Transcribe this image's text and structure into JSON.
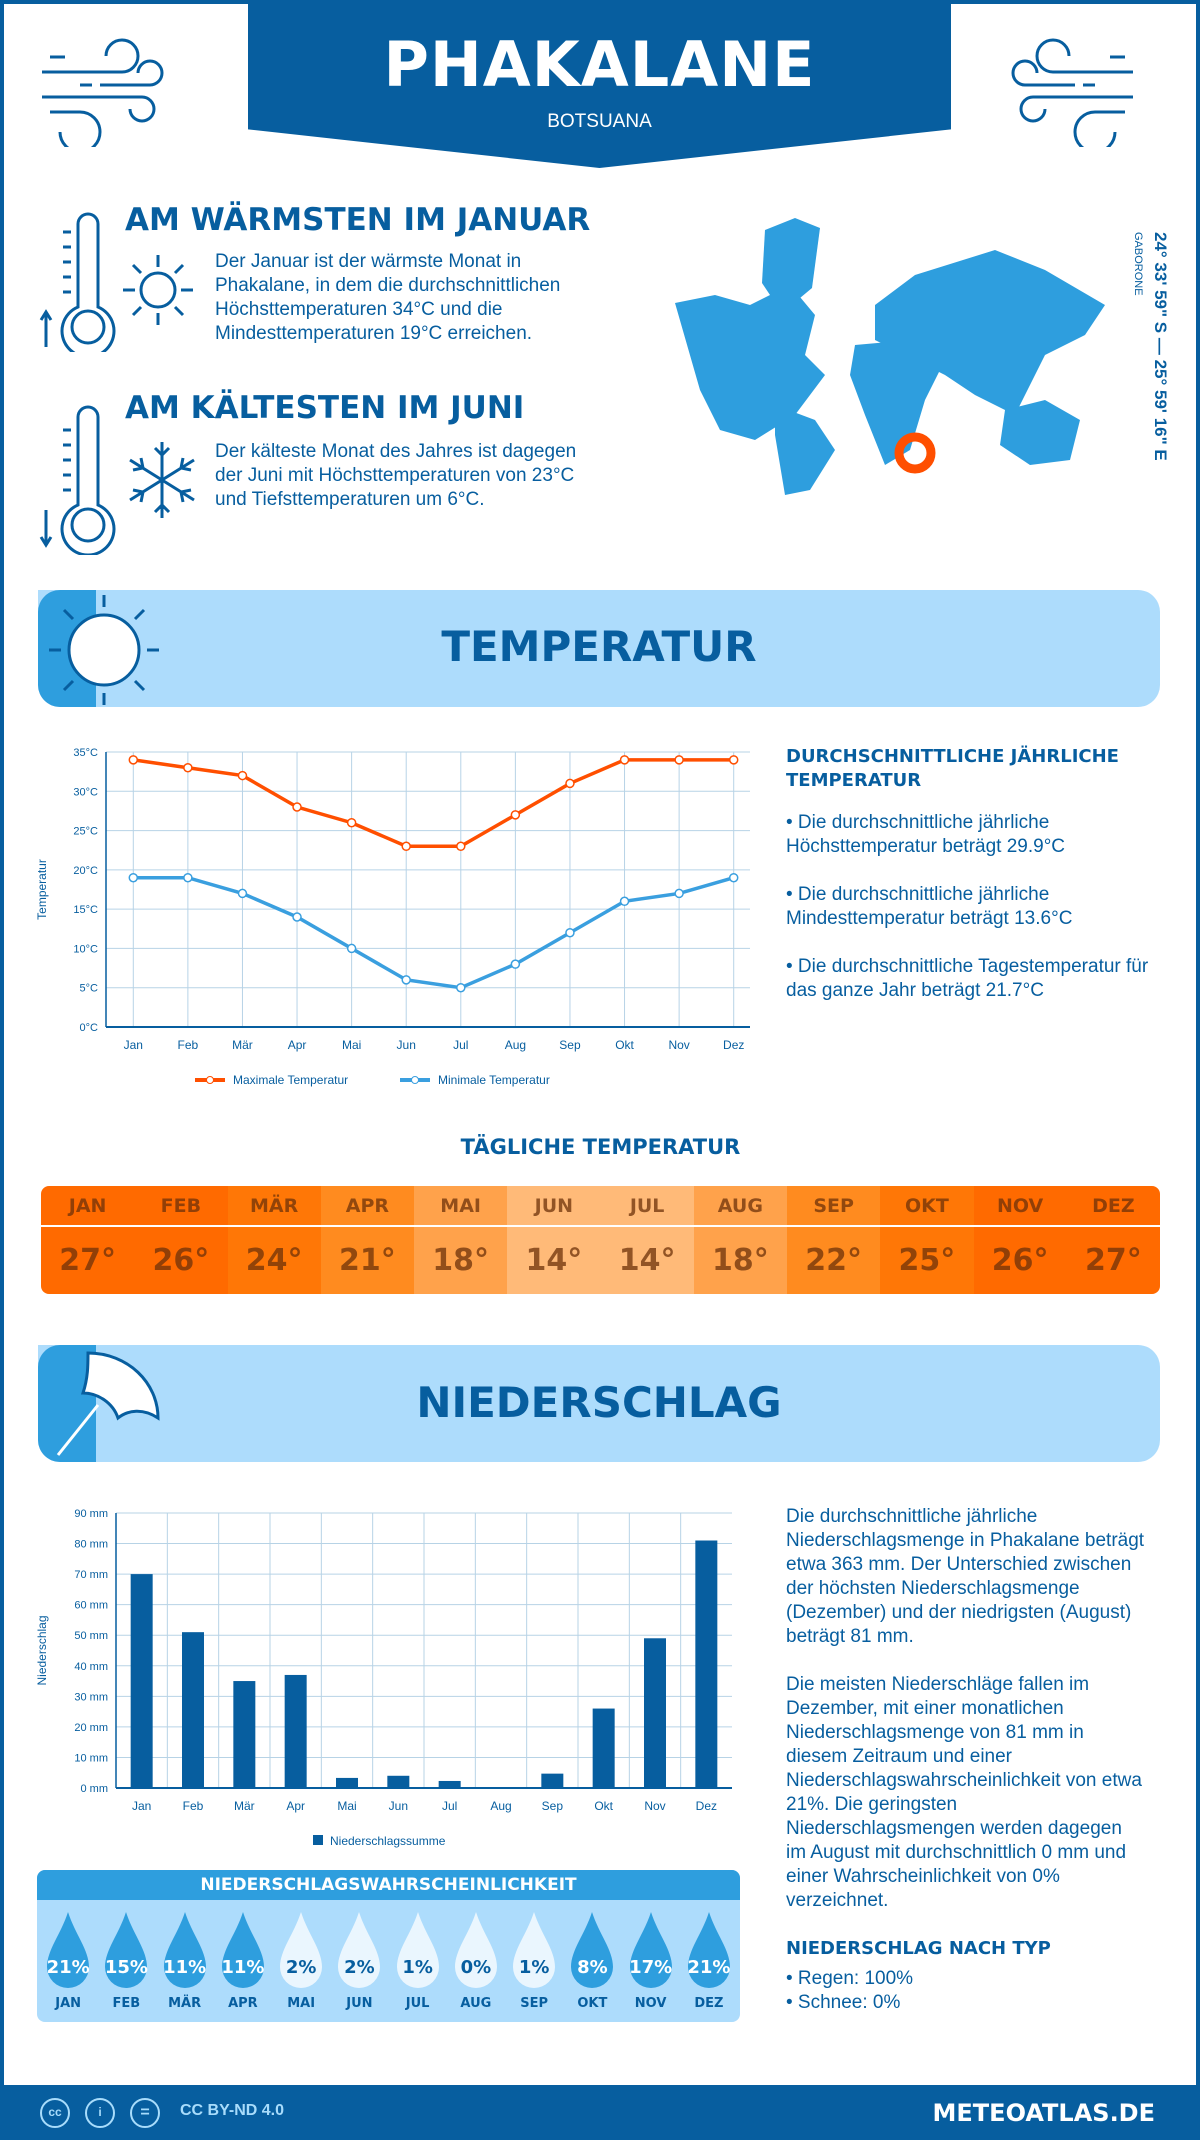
{
  "header": {
    "title": "PHAKALANE",
    "subtitle": "BOTSUANA"
  },
  "warmest": {
    "heading": "AM WÄRMSTEN IM JANUAR",
    "text": "Der Januar ist der wärmste Monat in Phakalane, in dem die durchschnittlichen Höchsttemperaturen 34°C und die Mindesttemperaturen 19°C erreichen."
  },
  "coldest": {
    "heading": "AM KÄLTESTEN IM JUNI",
    "text": "Der kälteste Monat des Jahres ist dagegen der Juni mit Höchsttemperaturen von 23°C und Tiefsttemperaturen um 6°C."
  },
  "map": {
    "coordinates": "24° 33' 59\" S — 25° 59' 16\" E",
    "nearest_city": "GABORONE",
    "marker_color": "#ff4f00"
  },
  "temperature_section": {
    "title": "TEMPERATUR",
    "annual_heading": "DURCHSCHNITTLICHE JÄHRLICHE TEMPERATUR",
    "bullets": [
      "• Die durchschnittliche jährliche Höchsttemperatur beträgt 29.9°C",
      "• Die durchschnittliche jährliche Mindesttemperatur beträgt 13.6°C",
      "• Die durchschnittliche Tagestemperatur für das ganze Jahr beträgt 21.7°C"
    ],
    "daily_heading": "TÄGLICHE TEMPERATUR",
    "daily": [
      {
        "month": "JAN",
        "value": "27°",
        "color": "#ff6a00"
      },
      {
        "month": "FEB",
        "value": "26°",
        "color": "#ff6a00"
      },
      {
        "month": "MÄR",
        "value": "24°",
        "color": "#ff7706"
      },
      {
        "month": "APR",
        "value": "21°",
        "color": "#ff8b1f"
      },
      {
        "month": "MAI",
        "value": "18°",
        "color": "#ffa24b"
      },
      {
        "month": "JUN",
        "value": "14°",
        "color": "#ffba78"
      },
      {
        "month": "JUL",
        "value": "14°",
        "color": "#ffba78"
      },
      {
        "month": "AUG",
        "value": "18°",
        "color": "#ffa24b"
      },
      {
        "month": "SEP",
        "value": "22°",
        "color": "#ff8b1f"
      },
      {
        "month": "OKT",
        "value": "25°",
        "color": "#ff7706"
      },
      {
        "month": "NOV",
        "value": "26°",
        "color": "#ff6a00"
      },
      {
        "month": "DEZ",
        "value": "27°",
        "color": "#ff6a00"
      }
    ]
  },
  "precipitation_section": {
    "title": "NIEDERSCHLAG",
    "text1": "Die durchschnittliche jährliche Niederschlagsmenge in Phakalane beträgt etwa 363 mm. Der Unterschied zwischen der höchsten Niederschlagsmenge (Dezember) und der niedrigsten (August) beträgt 81 mm.",
    "text2": "Die meisten Niederschläge fallen im Dezember, mit einer monatlichen Niederschlagsmenge von 81 mm in diesem Zeitraum und einer Niederschlagswahrscheinlichkeit von etwa 21%. Die geringsten Niederschlagsmengen werden dagegen im August mit durchschnittlich 0 mm und einer Wahrscheinlichkeit von 0% verzeichnet.",
    "type_heading": "NIEDERSCHLAG NACH TYP",
    "types": [
      "• Regen: 100%",
      "• Schnee: 0%"
    ],
    "probability_heading": "NIEDERSCHLAGSWAHRSCHEINLICHKEIT",
    "probability": [
      {
        "month": "JAN",
        "value": "21%"
      },
      {
        "month": "FEB",
        "value": "15%"
      },
      {
        "month": "MÄR",
        "value": "11%"
      },
      {
        "month": "APR",
        "value": "11%"
      },
      {
        "month": "MAI",
        "value": "2%"
      },
      {
        "month": "JUN",
        "value": "2%"
      },
      {
        "month": "JUL",
        "value": "1%"
      },
      {
        "month": "AUG",
        "value": "0%"
      },
      {
        "month": "SEP",
        "value": "1%"
      },
      {
        "month": "OKT",
        "value": "8%"
      },
      {
        "month": "NOV",
        "value": "17%"
      },
      {
        "month": "DEZ",
        "value": "21%"
      }
    ]
  },
  "footer": {
    "license": "CC BY-ND 4.0",
    "site": "METEOATLAS.DE"
  },
  "chart_data": [
    {
      "type": "line",
      "categories": [
        "Jan",
        "Feb",
        "Mär",
        "Apr",
        "Mai",
        "Jun",
        "Jul",
        "Aug",
        "Sep",
        "Okt",
        "Nov",
        "Dez"
      ],
      "ylabel": "Temperatur",
      "ylim": [
        0,
        35
      ],
      "yticks": [
        "0°C",
        "5°C",
        "10°C",
        "15°C",
        "20°C",
        "25°C",
        "30°C",
        "35°C"
      ],
      "grid": true,
      "legend": "bottom",
      "series": [
        {
          "name": "Maximale Temperatur",
          "color": "#ff4f00",
          "values": [
            34,
            33,
            32,
            28,
            26,
            23,
            23,
            27,
            31,
            34,
            34,
            34
          ]
        },
        {
          "name": "Minimale Temperatur",
          "color": "#3a9fdf",
          "values": [
            19,
            19,
            17,
            14,
            10,
            6,
            5,
            8,
            12,
            16,
            17,
            19
          ]
        }
      ]
    },
    {
      "type": "bar",
      "categories": [
        "Jan",
        "Feb",
        "Mär",
        "Apr",
        "Mai",
        "Jun",
        "Jul",
        "Aug",
        "Sep",
        "Okt",
        "Nov",
        "Dez"
      ],
      "ylabel": "Niederschlag",
      "ylim": [
        0,
        90
      ],
      "yticks": [
        "0 mm",
        "10 mm",
        "20 mm",
        "30 mm",
        "40 mm",
        "50 mm",
        "60 mm",
        "70 mm",
        "80 mm",
        "90 mm"
      ],
      "grid": true,
      "legend": "bottom",
      "series": [
        {
          "name": "Niederschlagssumme",
          "color": "#075e9f",
          "values": [
            70,
            51,
            35,
            37,
            3.3,
            4,
            2.3,
            0,
            4.7,
            26,
            49,
            81
          ]
        }
      ]
    }
  ]
}
